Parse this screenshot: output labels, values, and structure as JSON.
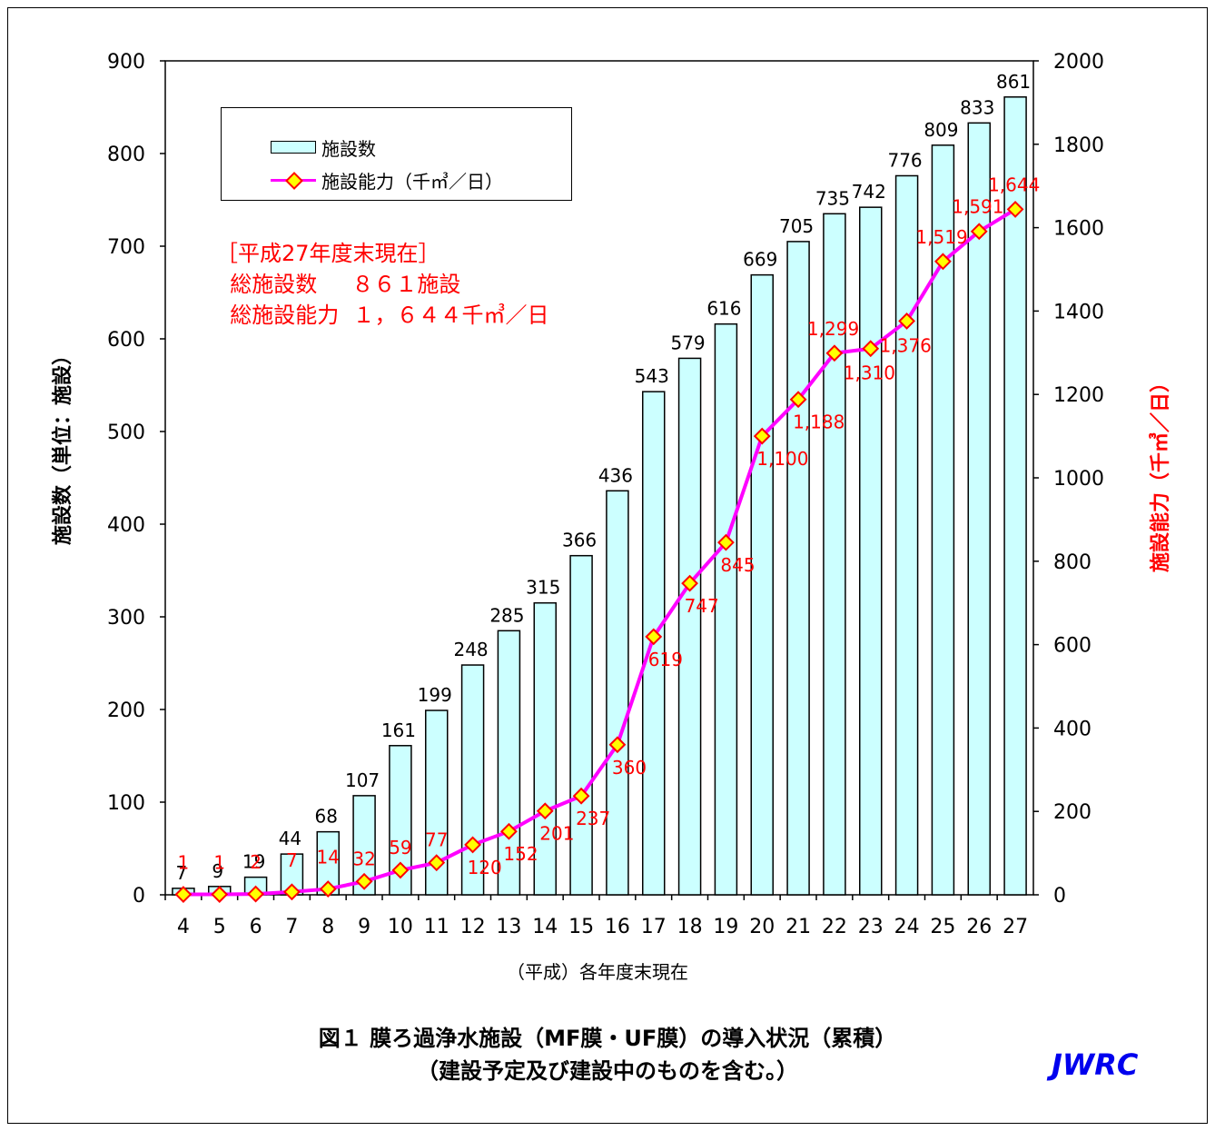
{
  "chart_data": {
    "type": "bar+line",
    "xlabel": "（平成）各年度末現在",
    "ylabel_left": "施設数（単位：施設）",
    "ylabel_right": "施設能力（千㎥／日）",
    "ylim_left": [
      0,
      900
    ],
    "ylim_right": [
      0,
      2000
    ],
    "yticks_left": [
      "0",
      "100",
      "200",
      "300",
      "400",
      "500",
      "600",
      "700",
      "800",
      "900"
    ],
    "yticks_right": [
      "0",
      "200",
      "400",
      "600",
      "800",
      "1000",
      "1200",
      "1400",
      "1600",
      "1800",
      "2000"
    ],
    "categories": [
      "4",
      "5",
      "6",
      "7",
      "8",
      "9",
      "10",
      "11",
      "12",
      "13",
      "14",
      "15",
      "16",
      "17",
      "18",
      "19",
      "20",
      "21",
      "22",
      "23",
      "24",
      "25",
      "26",
      "27"
    ],
    "series": [
      {
        "name": "施設数",
        "type": "bar",
        "axis": "left",
        "color": "#ccffff",
        "values": [
          7,
          9,
          19,
          44,
          68,
          107,
          161,
          199,
          248,
          285,
          315,
          366,
          436,
          543,
          579,
          616,
          669,
          705,
          735,
          742,
          776,
          809,
          833,
          861
        ],
        "labels": [
          "7",
          "9",
          "19",
          "44",
          "68",
          "107",
          "161",
          "199",
          "248",
          "285",
          "315",
          "366",
          "436",
          "543",
          "579",
          "616",
          "669",
          "705",
          "735",
          "742",
          "776",
          "809",
          "833",
          "861"
        ]
      },
      {
        "name": "施設能力（千㎥／日）",
        "type": "line",
        "axis": "right",
        "color": "#ff00ff",
        "marker_fill": "#ffff00",
        "marker_stroke": "#ff0000",
        "values": [
          1,
          1,
          2,
          7,
          14,
          32,
          59,
          77,
          120,
          152,
          201,
          237,
          360,
          619,
          747,
          845,
          1100,
          1188,
          1299,
          1310,
          1376,
          1519,
          1591,
          1644
        ],
        "labels": [
          "1",
          "1",
          "2",
          "7",
          "14",
          "32",
          "59",
          "77",
          "120",
          "152",
          "201",
          "237",
          "360",
          "619",
          "747",
          "845",
          "1,100",
          "1,188",
          "1,299",
          "1,310",
          "1,376",
          "1,519",
          "1,591",
          "1,644"
        ]
      }
    ],
    "grid": false,
    "legend_position": "top-left"
  },
  "legend": {
    "bar_label": "施設数",
    "line_label": "施設能力（千㎥／日）"
  },
  "annotation": {
    "line1": "［平成27年度末現在］",
    "line2": "  総施設数     ８６１施設",
    "line3": "  総施設能力  １，６４４千㎥／日"
  },
  "caption": {
    "line1": "図１  膜ろ過浄水施設（MF膜・UF膜）の導入状況（累積）",
    "line2": "（建設予定及び建設中のものを含む。）"
  },
  "logo": "JWRC"
}
